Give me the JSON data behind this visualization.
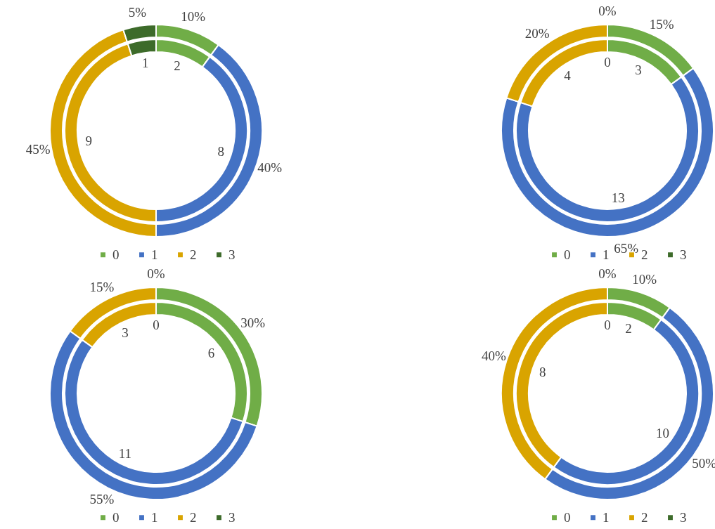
{
  "chart_data": [
    {
      "type": "donut",
      "categories": [
        "0",
        "1",
        "2",
        "3"
      ],
      "colors": [
        "#70ad47",
        "#4472c4",
        "#d9a400",
        "#3d6b2a"
      ],
      "legend": "bottom",
      "series": [
        {
          "values": [
            2,
            8,
            9,
            1
          ],
          "value_labels": [
            "2",
            "8",
            "9",
            "1"
          ]
        },
        {
          "values": [
            10,
            40,
            45,
            5
          ],
          "value_labels": [
            "10%",
            "40%",
            "45%",
            "5%"
          ]
        }
      ]
    },
    {
      "type": "donut",
      "categories": [
        "0",
        "1",
        "2",
        "3"
      ],
      "colors": [
        "#70ad47",
        "#4472c4",
        "#d9a400",
        "#3d6b2a"
      ],
      "legend": "bottom",
      "series": [
        {
          "values": [
            3,
            13,
            4,
            0
          ],
          "value_labels": [
            "3",
            "13",
            "4",
            "0"
          ]
        },
        {
          "values": [
            15,
            65,
            20,
            0
          ],
          "value_labels": [
            "15%",
            "65%",
            "20%",
            "0%"
          ]
        }
      ]
    },
    {
      "type": "donut",
      "categories": [
        "0",
        "1",
        "2",
        "3"
      ],
      "colors": [
        "#70ad47",
        "#4472c4",
        "#d9a400",
        "#3d6b2a"
      ],
      "legend": "bottom",
      "series": [
        {
          "values": [
            6,
            11,
            3,
            0
          ],
          "value_labels": [
            "6",
            "11",
            "3",
            "0"
          ]
        },
        {
          "values": [
            30,
            55,
            15,
            0
          ],
          "value_labels": [
            "30%",
            "55%",
            "15%",
            "0%"
          ]
        }
      ]
    },
    {
      "type": "donut",
      "categories": [
        "0",
        "1",
        "2",
        "3"
      ],
      "colors": [
        "#70ad47",
        "#4472c4",
        "#d9a400",
        "#3d6b2a"
      ],
      "legend": "bottom",
      "series": [
        {
          "values": [
            2,
            10,
            8,
            0
          ],
          "value_labels": [
            "2",
            "10",
            "8",
            "0"
          ]
        },
        {
          "values": [
            10,
            50,
            40,
            0
          ],
          "value_labels": [
            "10%",
            "50%",
            "40%",
            "0%"
          ]
        }
      ]
    }
  ]
}
